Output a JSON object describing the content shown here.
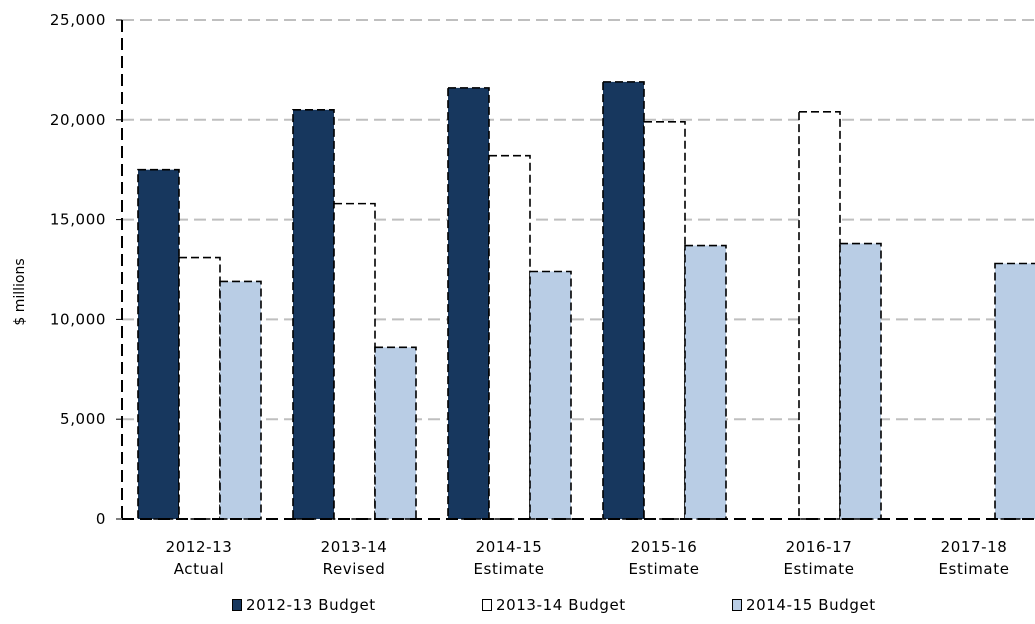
{
  "chart_data": {
    "type": "bar",
    "title": "",
    "xlabel": "",
    "ylabel": "$ millions",
    "ylim": [
      0,
      25000
    ],
    "yticks": [
      "0",
      "5,000",
      "10,000",
      "15,000",
      "20,000",
      "25,000"
    ],
    "ytick_values": [
      0,
      5000,
      10000,
      15000,
      20000,
      25000
    ],
    "grid": true,
    "legend_position": "bottom",
    "categories": [
      [
        "2012-13",
        "Actual"
      ],
      [
        "2013-14",
        "Revised"
      ],
      [
        "2014-15",
        "Estimate"
      ],
      [
        "2015-16",
        "Estimate"
      ],
      [
        "2016-17",
        "Estimate"
      ],
      [
        "2017-18",
        "Estimate"
      ]
    ],
    "series": [
      {
        "name": "2012-13 Budget",
        "color": "#17375e",
        "values": [
          17500,
          20500,
          21600,
          21900,
          null,
          null
        ]
      },
      {
        "name": "2013-14 Budget",
        "color": "#ffffff",
        "values": [
          13100,
          15800,
          18200,
          19900,
          20400,
          null
        ]
      },
      {
        "name": "2014-15 Budget",
        "color": "#b9cde5",
        "values": [
          11900,
          8600,
          12400,
          13700,
          13800,
          12800
        ]
      }
    ]
  }
}
